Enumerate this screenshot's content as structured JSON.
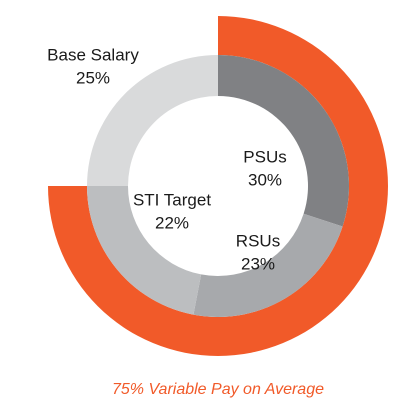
{
  "chart_data": {
    "type": "pie",
    "categories": [
      "PSUs",
      "RSUs",
      "STI Target",
      "Base Salary"
    ],
    "values": [
      30,
      23,
      22,
      25
    ],
    "value_labels": [
      "30%",
      "23%",
      "22%",
      "25%"
    ],
    "colors": [
      "#808184",
      "#a7a9ac",
      "#bcbec0",
      "#d9dadb"
    ],
    "outer_ring": {
      "value": 75,
      "color": "#f15a29"
    },
    "annotation": "75% Variable Pay on Average"
  }
}
